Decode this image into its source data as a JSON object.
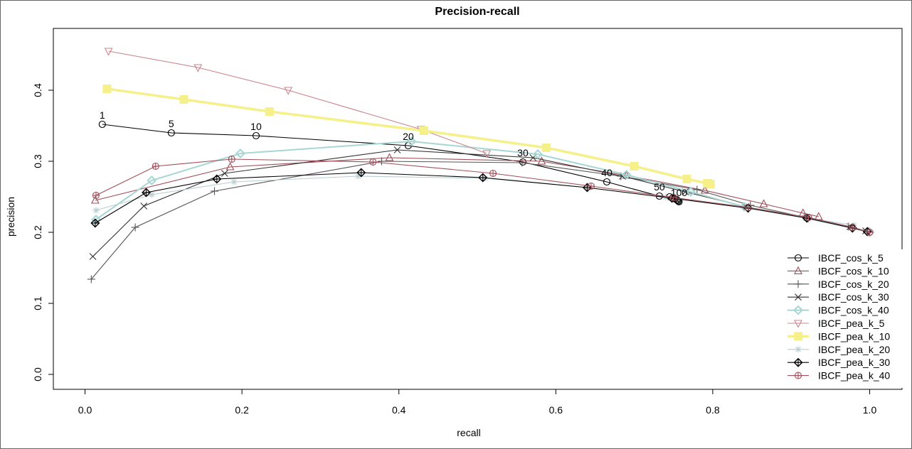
{
  "chart_data": {
    "type": "line",
    "title": "Precision-recall",
    "xlabel": "recall",
    "ylabel": "precision",
    "xlim": [
      0.0,
      1.0
    ],
    "ylim": [
      0.0,
      0.46
    ],
    "xticks": [
      "0.0",
      "0.2",
      "0.4",
      "0.6",
      "0.8",
      "1.0"
    ],
    "yticks": [
      "0.0",
      "0.1",
      "0.2",
      "0.3",
      "0.4"
    ],
    "grid": false,
    "legend_position": "bottom-right",
    "point_labels": [
      {
        "text": "1",
        "x": 0.022,
        "y": 0.352
      },
      {
        "text": "5",
        "x": 0.11,
        "y": 0.34
      },
      {
        "text": "10",
        "x": 0.218,
        "y": 0.336
      },
      {
        "text": "20",
        "x": 0.412,
        "y": 0.322
      },
      {
        "text": "30",
        "x": 0.558,
        "y": 0.299
      },
      {
        "text": "40",
        "x": 0.665,
        "y": 0.271
      },
      {
        "text": "50",
        "x": 0.732,
        "y": 0.251
      },
      {
        "text": "100",
        "x": 0.757,
        "y": 0.243
      }
    ],
    "series": [
      {
        "name": "IBCF_cos_k_5",
        "color": "#000000",
        "marker": "circle",
        "x": [
          0.022,
          0.11,
          0.218,
          0.412,
          0.558,
          0.665,
          0.732,
          0.745,
          0.75,
          0.752,
          0.754,
          0.755,
          0.756,
          0.757
        ],
        "y": [
          0.352,
          0.34,
          0.336,
          0.322,
          0.299,
          0.271,
          0.251,
          0.25,
          0.249,
          0.247,
          0.246,
          0.245,
          0.244,
          0.243
        ]
      },
      {
        "name": "IBCF_cos_k_10",
        "color": "#9E4F5A",
        "marker": "triangle-up",
        "x": [
          0.013,
          0.185,
          0.388,
          0.582,
          0.69,
          0.79,
          0.865,
          0.915,
          0.935
        ],
        "y": [
          0.245,
          0.292,
          0.305,
          0.3,
          0.28,
          0.259,
          0.24,
          0.227,
          0.222
        ]
      },
      {
        "name": "IBCF_cos_k_20",
        "color": "#555555",
        "marker": "plus",
        "x": [
          0.008,
          0.064,
          0.165,
          0.378,
          0.557,
          0.683,
          0.78,
          0.848,
          0.922,
          0.973
        ],
        "y": [
          0.134,
          0.207,
          0.258,
          0.3,
          0.298,
          0.279,
          0.26,
          0.238,
          0.22,
          0.208
        ]
      },
      {
        "name": "IBCF_cos_k_30",
        "color": "#333333",
        "marker": "cross",
        "x": [
          0.01,
          0.075,
          0.178,
          0.398,
          0.571,
          0.685,
          0.765,
          0.842,
          0.92,
          0.975,
          0.995
        ],
        "y": [
          0.166,
          0.237,
          0.283,
          0.316,
          0.305,
          0.279,
          0.257,
          0.236,
          0.221,
          0.208,
          0.202
        ]
      },
      {
        "name": "IBCF_cos_k_40",
        "color": "#A8D6D4",
        "marker": "diamond",
        "x": [
          0.014,
          0.085,
          0.198,
          0.416,
          0.577,
          0.69,
          0.772,
          0.84,
          0.92,
          0.978,
          1.0
        ],
        "y": [
          0.218,
          0.273,
          0.311,
          0.328,
          0.31,
          0.281,
          0.257,
          0.236,
          0.22,
          0.206,
          0.2
        ]
      },
      {
        "name": "IBCF_pea_k_5",
        "color": "#C98590",
        "marker": "triangle-down",
        "x": [
          0.03,
          0.144,
          0.259,
          0.428,
          0.512
        ],
        "y": [
          0.455,
          0.432,
          0.4,
          0.345,
          0.311
        ]
      },
      {
        "name": "IBCF_pea_k_10",
        "color": "#F5F08A",
        "marker": "square",
        "x": [
          0.028,
          0.126,
          0.235,
          0.432,
          0.588,
          0.7,
          0.767,
          0.793,
          0.797
        ],
        "y": [
          0.402,
          0.387,
          0.37,
          0.343,
          0.319,
          0.293,
          0.275,
          0.269,
          0.268
        ]
      },
      {
        "name": "IBCF_pea_k_20",
        "color": "#B8CED0",
        "marker": "asterisk",
        "x": [
          0.014,
          0.085,
          0.19,
          0.348,
          0.51,
          0.64,
          0.74,
          0.843,
          0.92,
          0.98
        ],
        "y": [
          0.231,
          0.253,
          0.271,
          0.279,
          0.276,
          0.263,
          0.249,
          0.236,
          0.22,
          0.21
        ]
      },
      {
        "name": "IBCF_pea_k_30",
        "color": "#000000",
        "marker": "diamond-plus",
        "x": [
          0.013,
          0.078,
          0.168,
          0.352,
          0.507,
          0.64,
          0.748,
          0.845,
          0.92,
          0.978,
          0.997
        ],
        "y": [
          0.213,
          0.256,
          0.275,
          0.284,
          0.277,
          0.263,
          0.248,
          0.234,
          0.22,
          0.206,
          0.201
        ]
      },
      {
        "name": "IBCF_pea_k_40",
        "color": "#9E4F5A",
        "marker": "circle-plus",
        "x": [
          0.014,
          0.09,
          0.187,
          0.367,
          0.52,
          0.645,
          0.75,
          0.845,
          0.922,
          0.978,
          1.0
        ],
        "y": [
          0.252,
          0.293,
          0.303,
          0.299,
          0.283,
          0.265,
          0.249,
          0.235,
          0.221,
          0.207,
          0.2
        ]
      }
    ]
  }
}
